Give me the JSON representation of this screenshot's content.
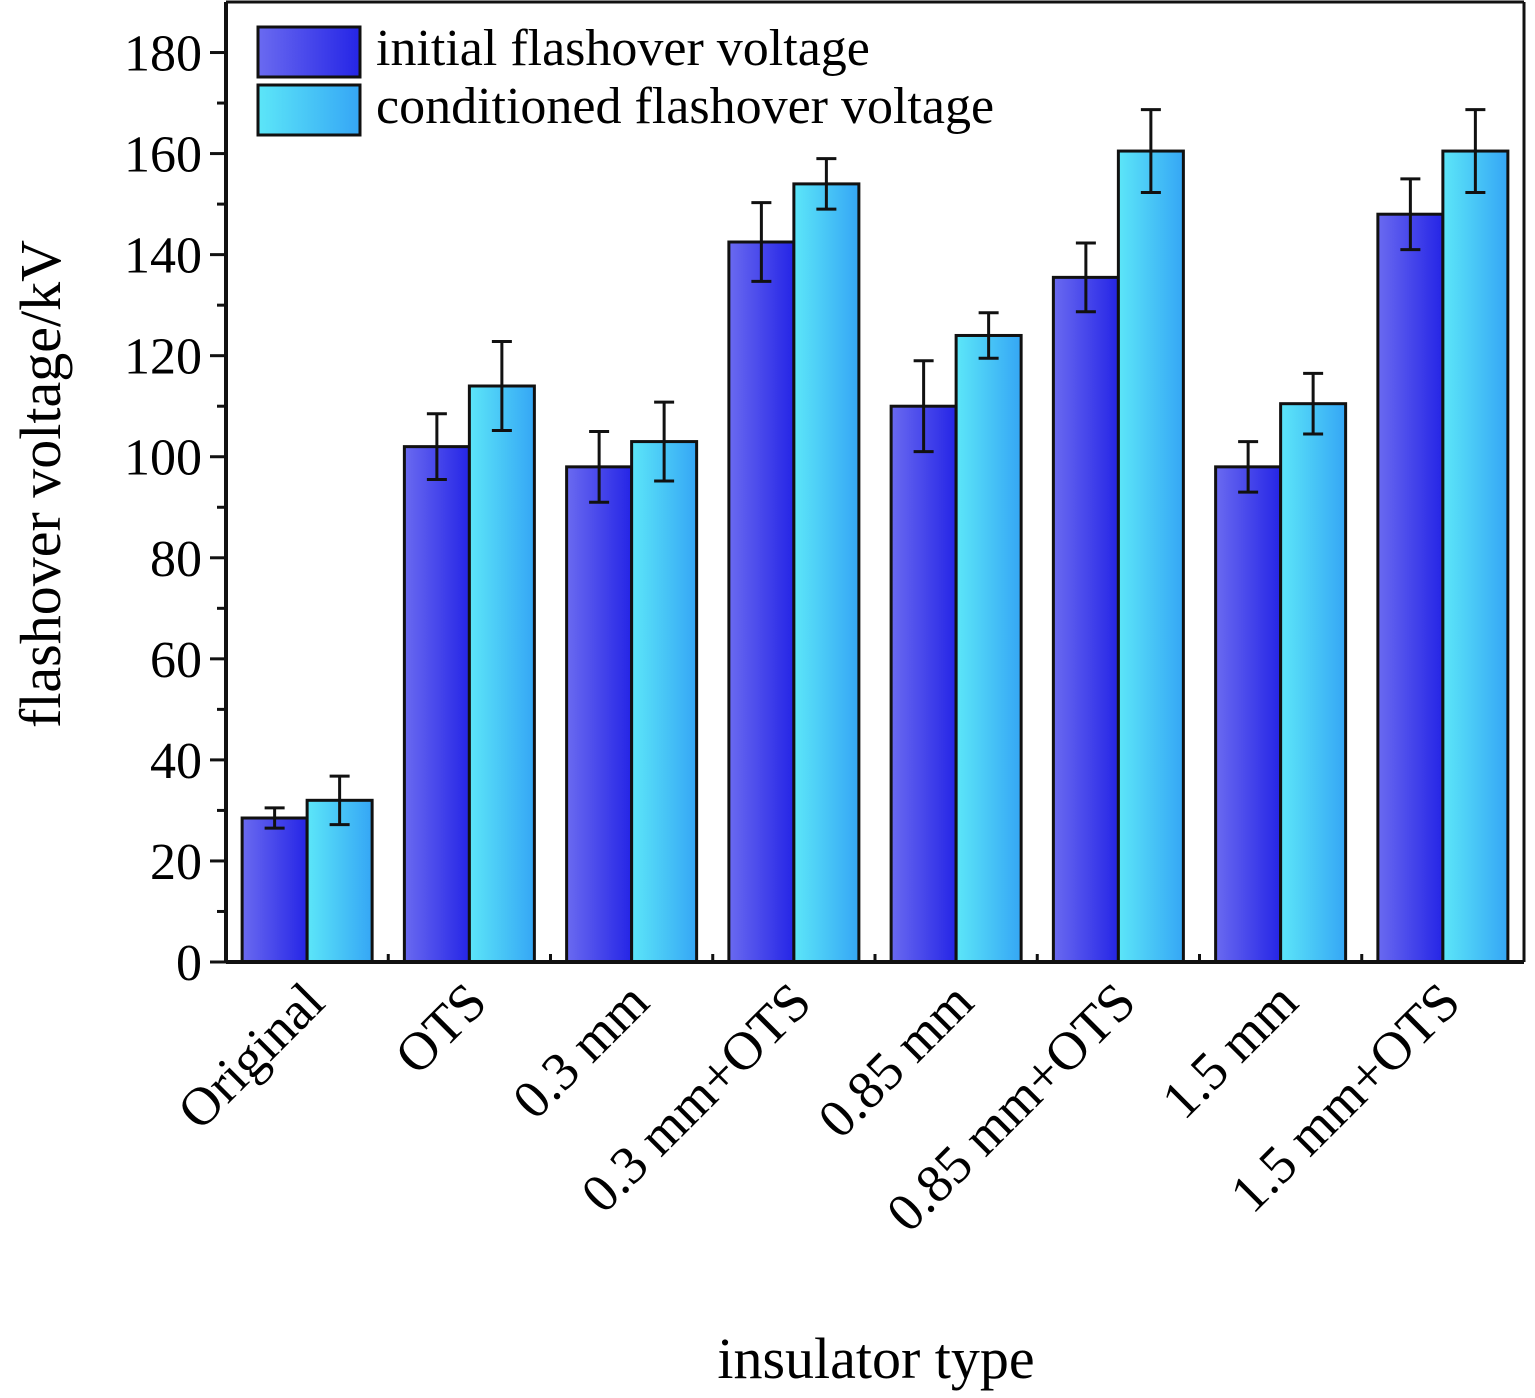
{
  "chart_data": {
    "type": "bar",
    "title": "",
    "xlabel": "insulator type",
    "ylabel": "flashover voltage/kV",
    "ylim": [
      0,
      190
    ],
    "yticks": [
      0,
      20,
      40,
      60,
      80,
      100,
      120,
      140,
      160,
      180
    ],
    "grid": false,
    "legend_position": "top-left",
    "categories": [
      "Original",
      "OTS",
      "0.3 mm",
      "0.3 mm+OTS",
      "0.85 mm",
      "0.85 mm+OTS",
      "1.5 mm",
      "1.5 mm+OTS"
    ],
    "series": [
      {
        "name": "initial flashover voltage",
        "values": [
          28.5,
          102,
          98,
          142.5,
          110,
          135.5,
          98,
          148
        ],
        "errors": [
          2,
          6.5,
          7,
          7.8,
          9,
          6.8,
          5,
          7
        ],
        "color_light": "#6a6af0",
        "color_dark": "#2525e6"
      },
      {
        "name": "conditioned flashover voltage",
        "values": [
          32,
          114,
          103,
          154,
          124,
          160.5,
          110.5,
          160.5
        ],
        "errors": [
          4.8,
          8.8,
          7.8,
          5,
          4.5,
          8.2,
          6,
          8.2
        ],
        "color_light": "#5ce6f8",
        "color_dark": "#35a6f5"
      }
    ]
  }
}
